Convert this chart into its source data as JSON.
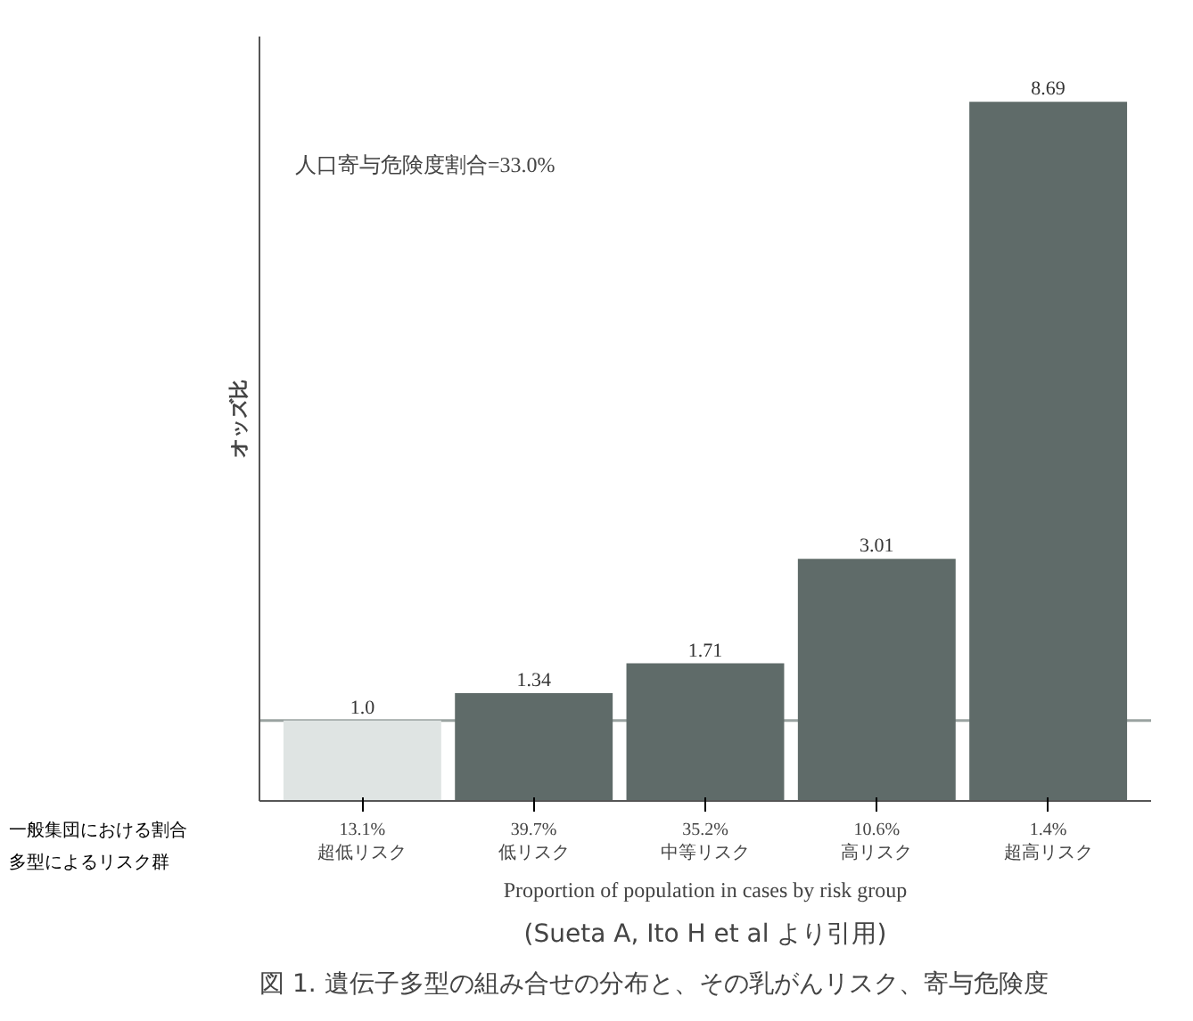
{
  "chart_data": {
    "type": "bar",
    "title": "図 1. 遺伝子多型の組み合せの分布と、その乳がんリスク、寄与危険度",
    "subtitle": "(Sueta A, Ito H et al より引用)",
    "xlabel": "Proportion of population in cases by risk group",
    "ylabel": "オッズ比",
    "categories": [
      "13.1%\n超低リスク",
      "39.7%\n低リスク",
      "35.2%\n中等リスク",
      "10.6%\n高リスク",
      "1.4%\n超高リスク"
    ],
    "values": [
      1.0,
      1.34,
      1.71,
      3.01,
      8.69
    ],
    "colors": [
      "#dfe4e3",
      "#5f6b69",
      "#5f6b69",
      "#5f6b69",
      "#5f6b69"
    ],
    "value_labels": [
      "1.0",
      "1.34",
      "1.71",
      "3.01",
      "8.69"
    ],
    "ylim": [
      0,
      9.5
    ],
    "tick_labels": "x",
    "grid": false,
    "ref_lines": [
      {
        "axis": "y",
        "value": 1,
        "color": "#9aa3a1"
      }
    ],
    "annotations": [
      "人口寄与危険度割合=33.0%",
      "一般集団における割合",
      "多型によるリスク群"
    ]
  }
}
